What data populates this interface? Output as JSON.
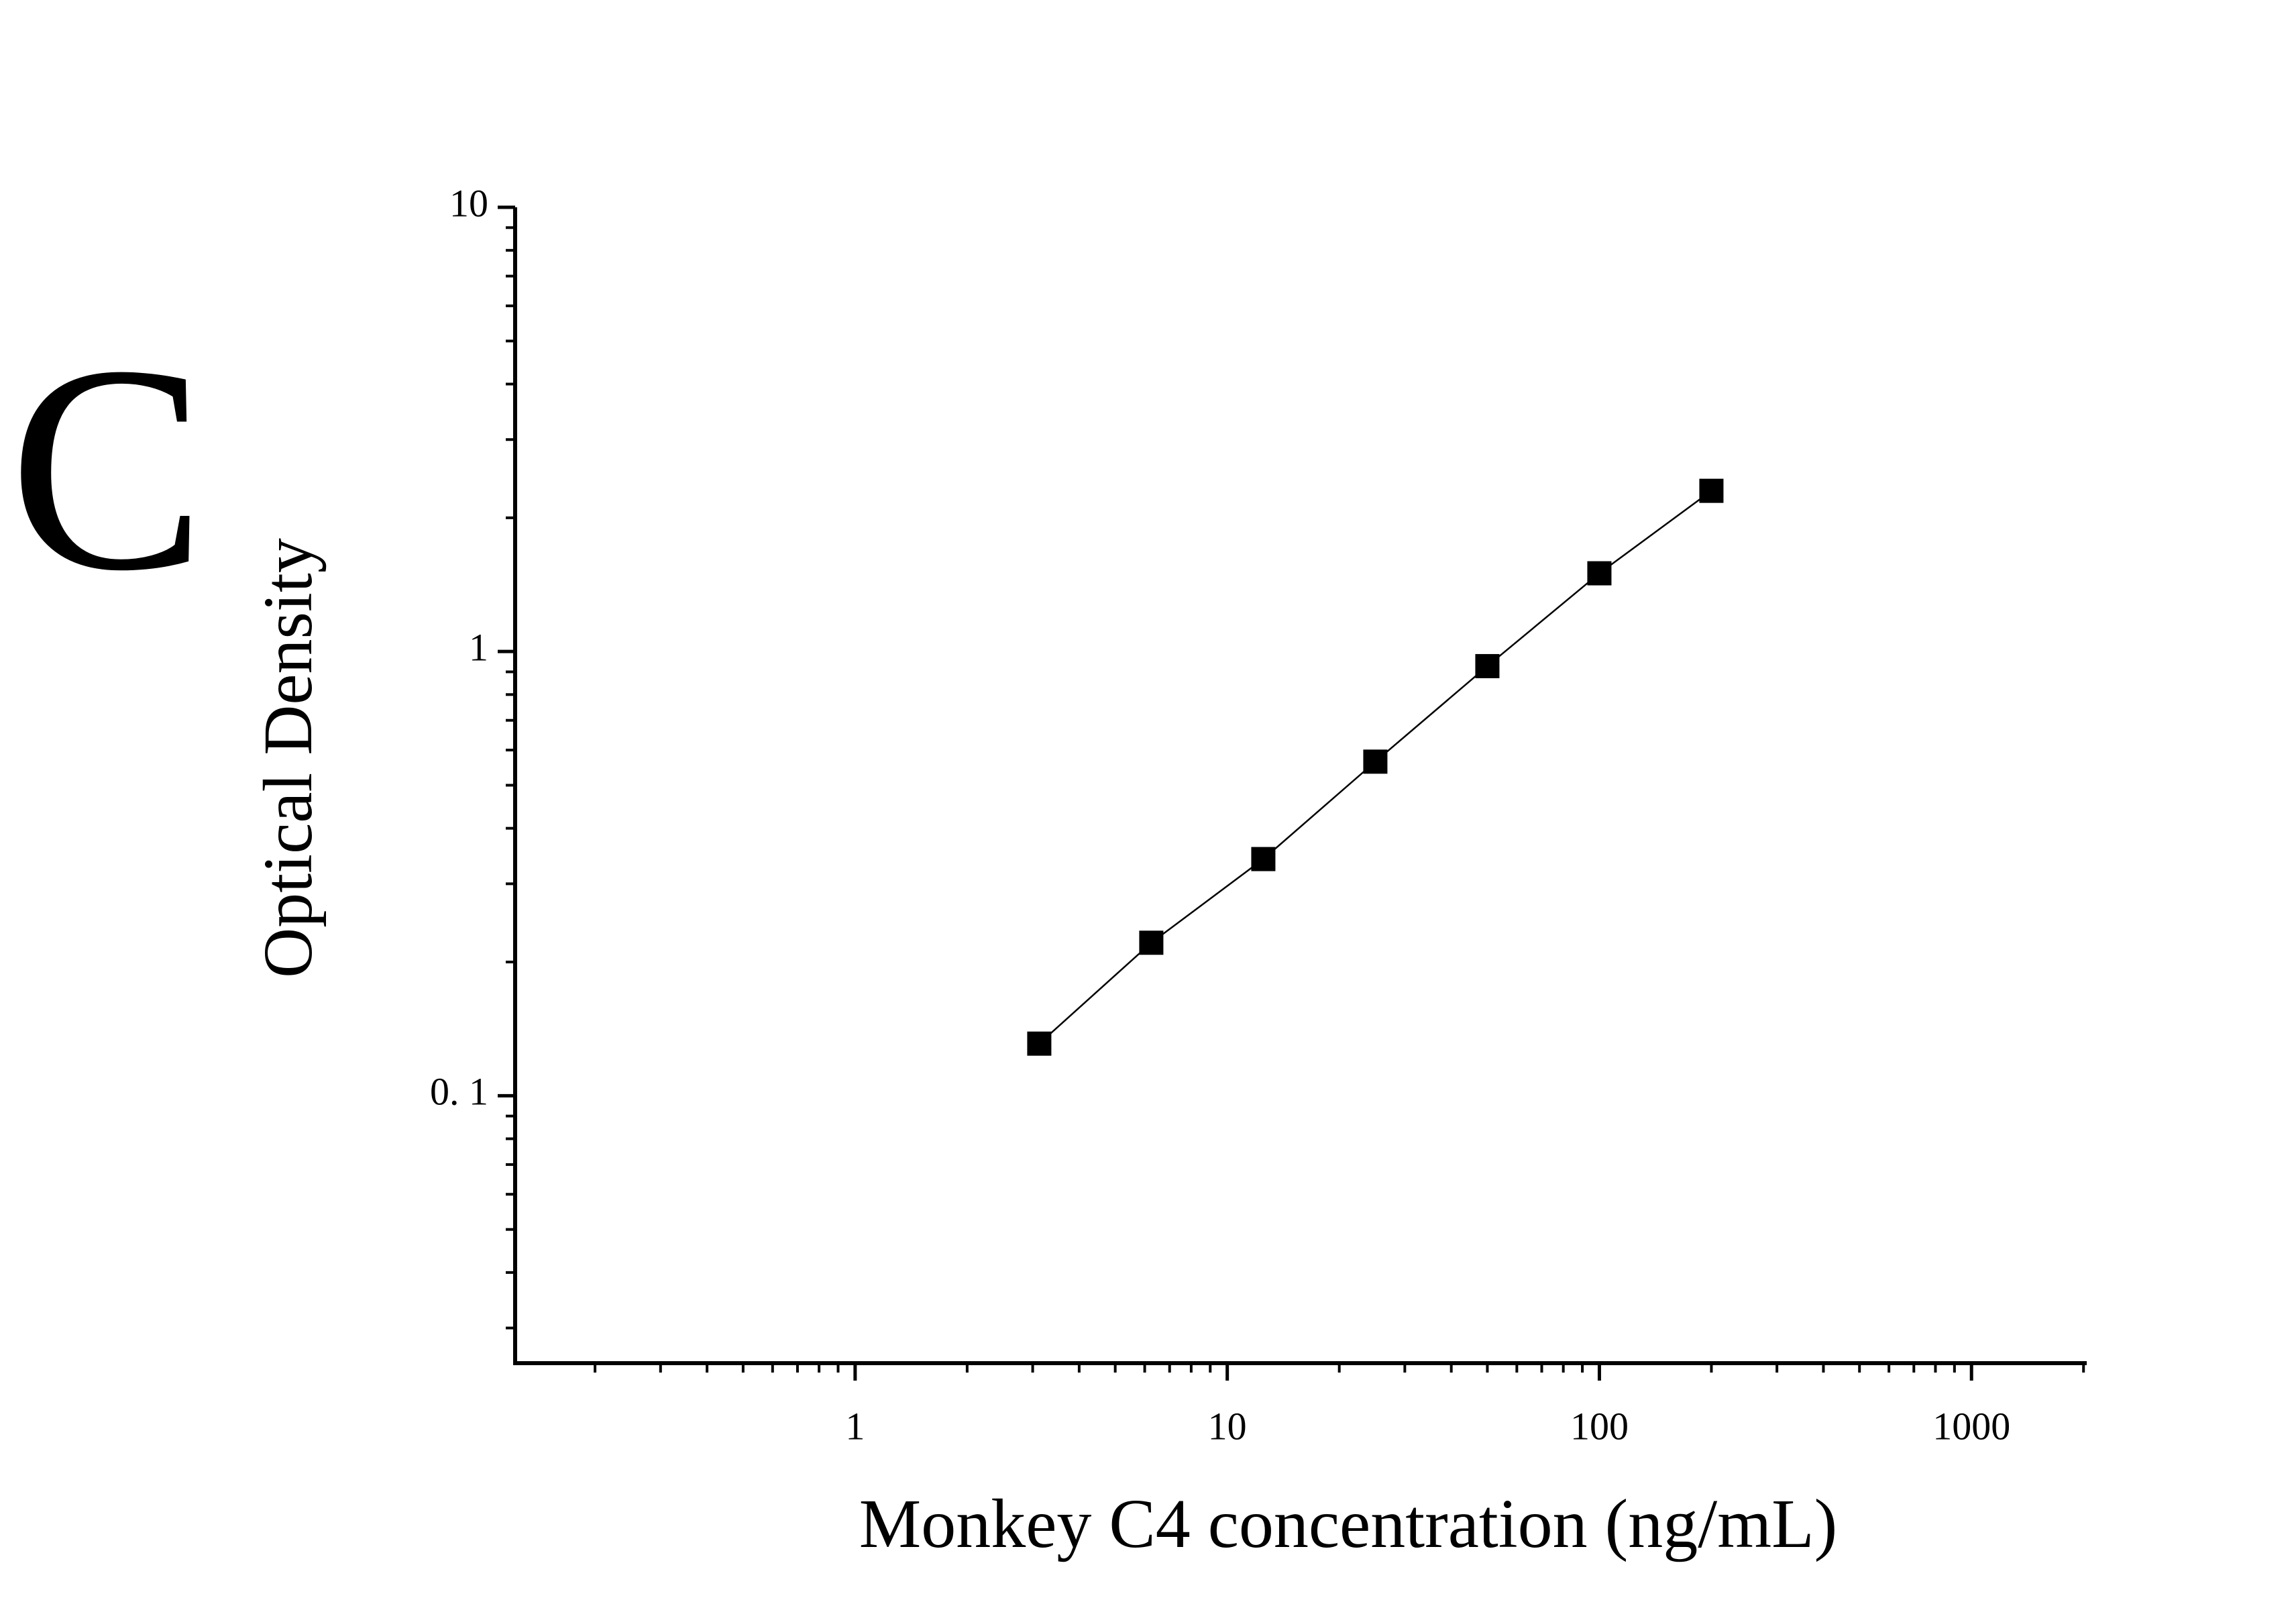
{
  "chart_data": {
    "type": "scatter",
    "panel_label": "C",
    "x_label": "Monkey C4 concentration (ng/mL)",
    "y_label": "Optical Density",
    "x_log": true,
    "y_log": true,
    "xlim": [
      0.122,
      2040
    ],
    "ylim": [
      0.025,
      10
    ],
    "xticks": [
      1,
      10,
      100,
      1000
    ],
    "yticks": [
      {
        "value": 0.1,
        "label": "0. 1"
      },
      1,
      10
    ],
    "minor_ticks": true,
    "connect": true,
    "series": [
      {
        "color": "#000000",
        "x": [
          3.125,
          6.25,
          12.5,
          25,
          50,
          100,
          200
        ],
        "values": [
          0.131,
          0.221,
          0.341,
          0.565,
          0.927,
          1.5,
          2.3
        ]
      }
    ]
  }
}
